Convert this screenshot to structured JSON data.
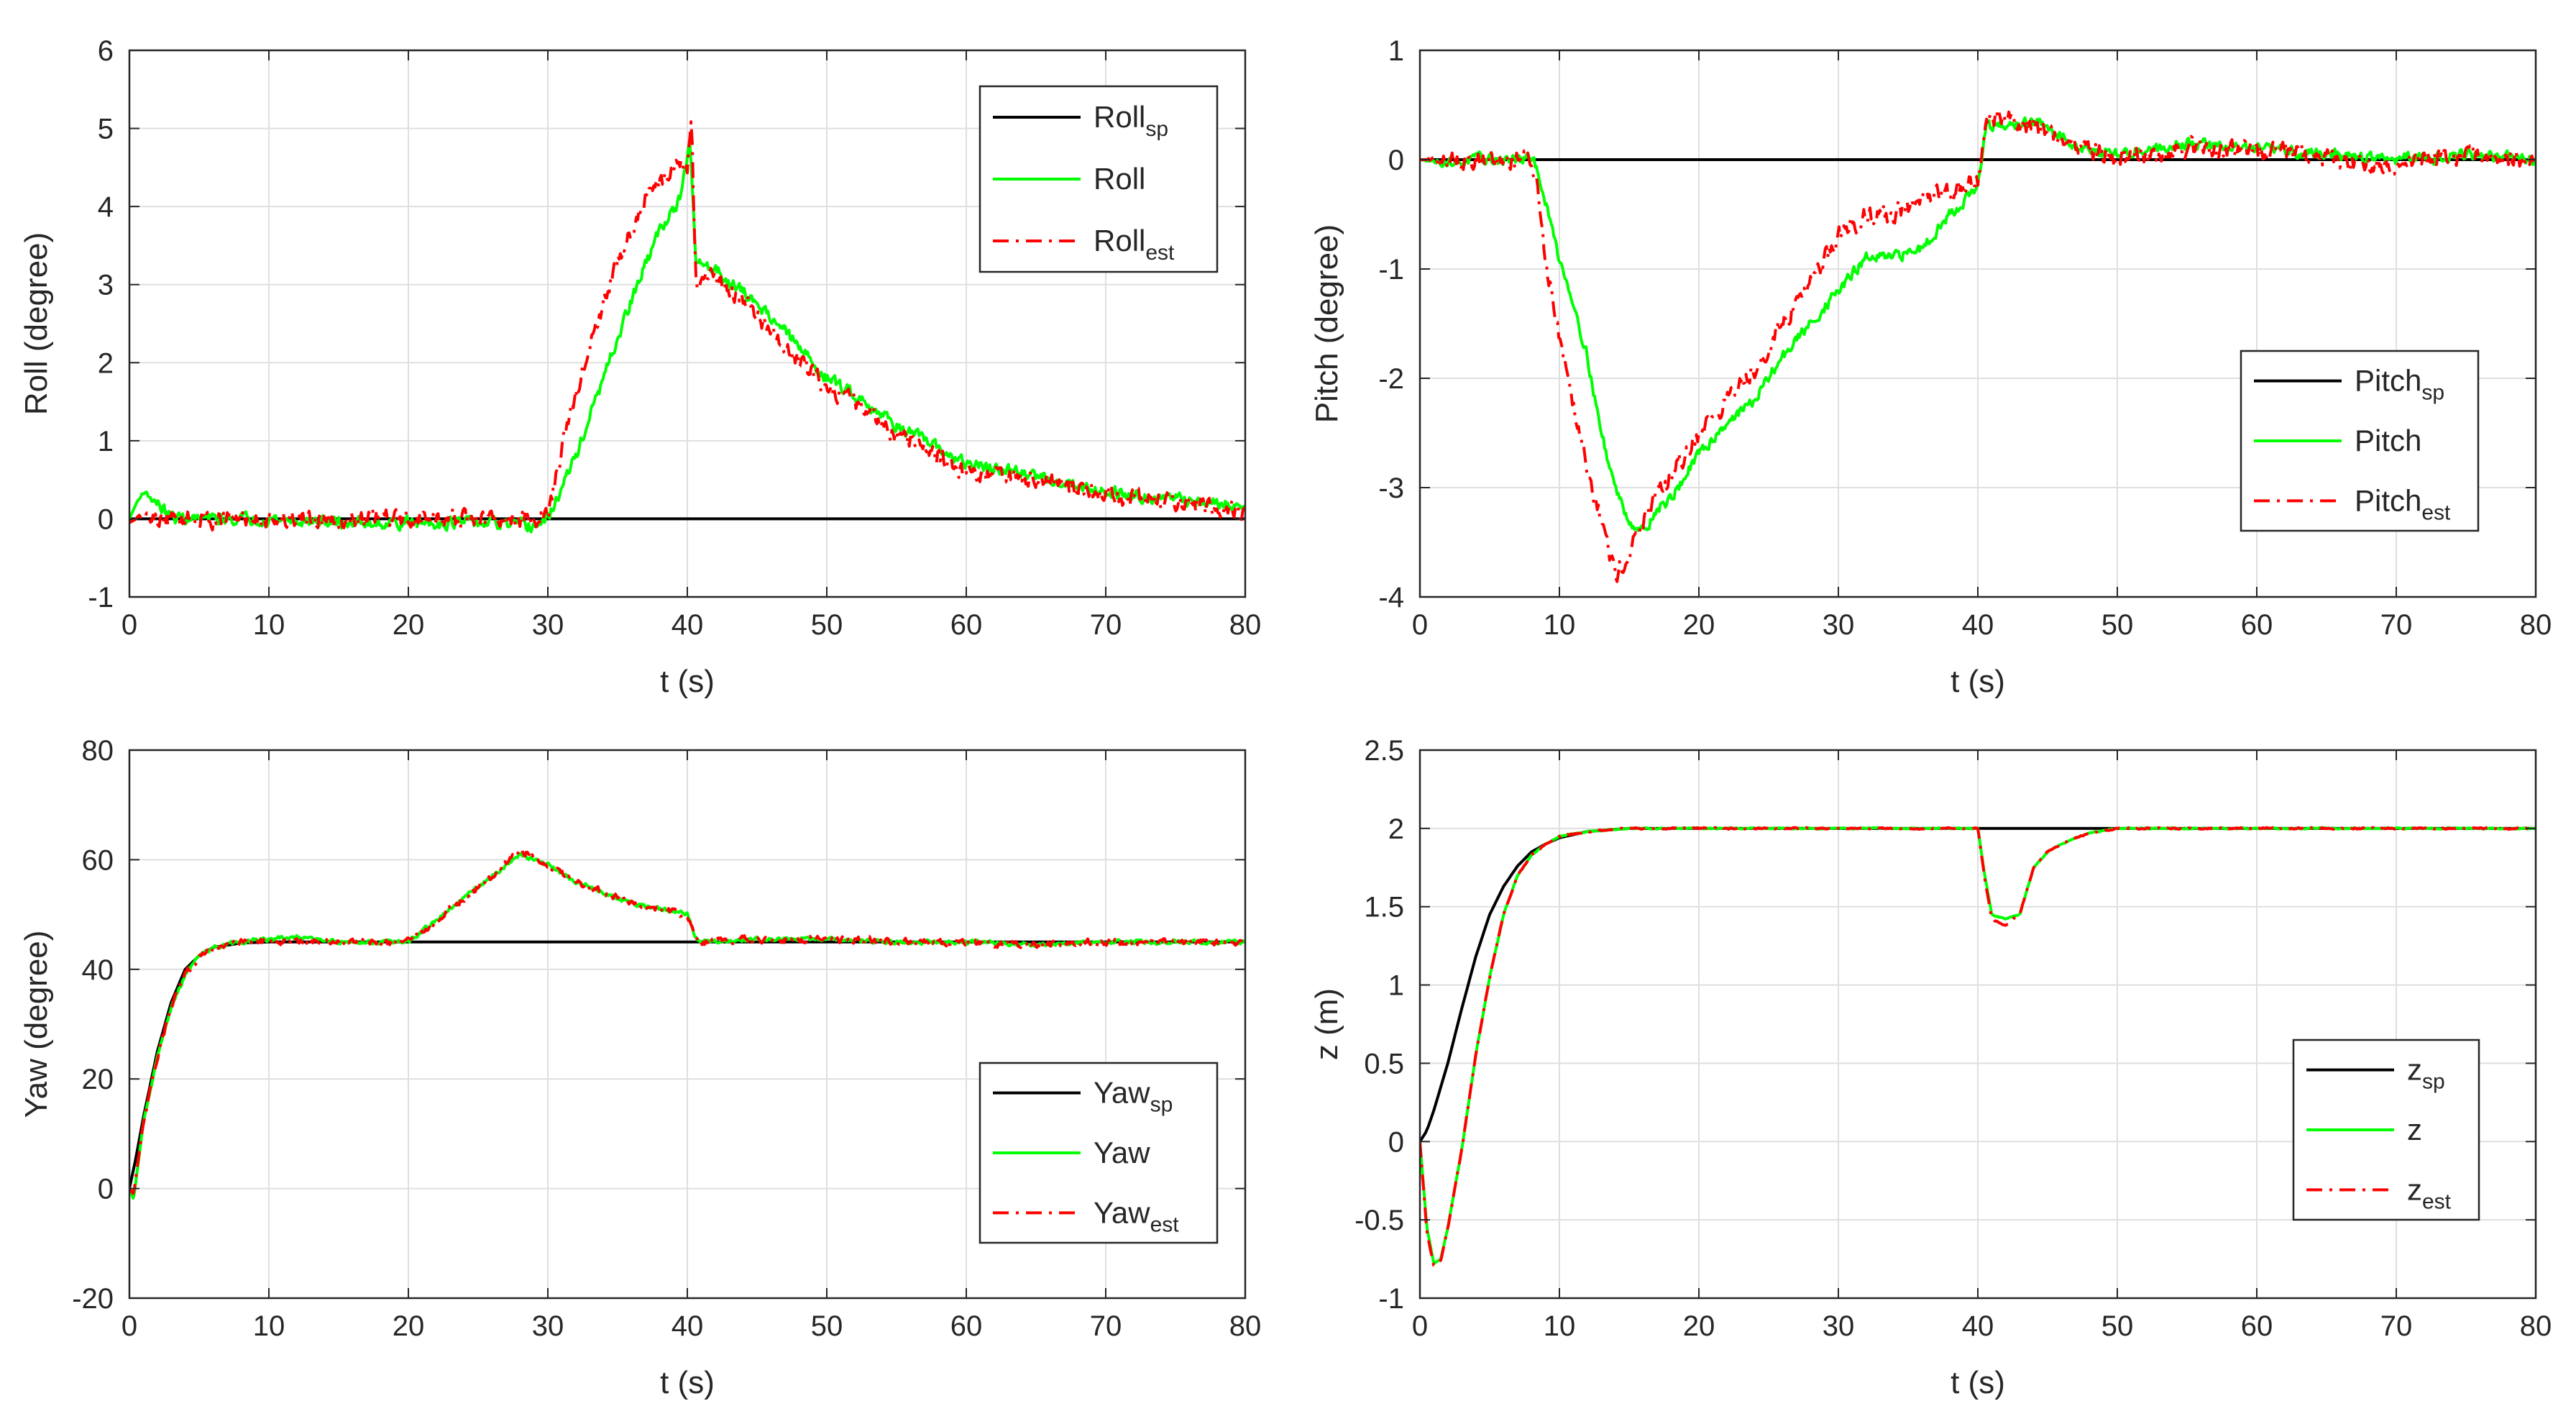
{
  "colors": {
    "setpoint": "#000000",
    "measured": "#00ff00",
    "estimated": "#ff0000",
    "grid": "#dfdfdf",
    "axis": "#262626"
  },
  "chart_data": [
    {
      "type": "line",
      "id": "roll",
      "xlabel": "t (s)",
      "ylabel": "Roll (degree)",
      "xlim": [
        0,
        80
      ],
      "ylim": [
        -1,
        6
      ],
      "xticks": [
        0,
        10,
        20,
        30,
        40,
        50,
        60,
        70,
        80
      ],
      "yticks": [
        -1,
        0,
        1,
        2,
        3,
        4,
        5,
        6
      ],
      "legend_position": "top-right",
      "series": [
        {
          "name": "Roll",
          "sub": "sp",
          "style": "solid",
          "color": "#000000",
          "noise": 0,
          "x": [
            0,
            80
          ],
          "y": [
            0,
            0
          ]
        },
        {
          "name": "Roll",
          "sub": "",
          "style": "solid",
          "color": "#00ff00",
          "noise": 0.12,
          "x": [
            0,
            0.5,
            1,
            2,
            3,
            5,
            10,
            15,
            20,
            25,
            29,
            30,
            32,
            34,
            36,
            38,
            39.5,
            40.2,
            40.6,
            42,
            44,
            46,
            48,
            50,
            52,
            55,
            58,
            60,
            65,
            70,
            75,
            80
          ],
          "y": [
            0,
            0.2,
            0.35,
            0.2,
            0.02,
            0,
            0,
            -0.05,
            -0.05,
            -0.05,
            -0.1,
            0,
            0.8,
            1.8,
            2.8,
            3.7,
            4.1,
            4.8,
            3.3,
            3.2,
            2.9,
            2.6,
            2.2,
            1.8,
            1.6,
            1.2,
            0.9,
            0.7,
            0.55,
            0.35,
            0.25,
            0.15
          ]
        },
        {
          "name": "Roll",
          "sub": "est",
          "style": "dashdot",
          "color": "#ff0000",
          "noise": 0.18,
          "x": [
            0,
            1,
            2,
            5,
            10,
            15,
            20,
            25,
            29,
            30,
            31,
            33,
            35,
            37,
            39,
            40,
            40.3,
            40.6,
            42,
            44,
            46,
            48,
            50,
            52,
            55,
            58,
            60,
            65,
            70,
            75,
            80
          ],
          "y": [
            -0.05,
            0.05,
            0,
            0,
            0,
            0,
            0,
            0,
            0,
            0.05,
            0.9,
            2.2,
            3.3,
            4.1,
            4.5,
            4.5,
            5.1,
            3.0,
            3.1,
            2.8,
            2.4,
            2.0,
            1.7,
            1.5,
            1.1,
            0.8,
            0.6,
            0.5,
            0.3,
            0.2,
            0.1
          ]
        }
      ]
    },
    {
      "type": "line",
      "id": "pitch",
      "xlabel": "t (s)",
      "ylabel": "Pitch (degree)",
      "xlim": [
        0,
        80
      ],
      "ylim": [
        -4,
        1
      ],
      "xticks": [
        0,
        10,
        20,
        30,
        40,
        50,
        60,
        70,
        80
      ],
      "yticks": [
        -4,
        -3,
        -2,
        -1,
        0,
        1
      ],
      "legend_position": "middle-right",
      "series": [
        {
          "name": "Pitch",
          "sub": "sp",
          "style": "solid",
          "color": "#000000",
          "noise": 0,
          "x": [
            0,
            80
          ],
          "y": [
            0,
            0
          ]
        },
        {
          "name": "Pitch",
          "sub": "",
          "style": "solid",
          "color": "#00ff00",
          "noise": 0.08,
          "x": [
            0,
            2,
            4,
            6,
            8,
            8.5,
            9,
            10,
            11,
            12,
            13,
            14,
            15,
            16,
            17,
            18,
            20,
            22,
            24,
            26,
            28,
            30,
            32,
            34,
            36,
            38,
            40,
            40.6,
            42,
            44,
            46,
            48,
            50,
            55,
            60,
            65,
            70,
            75,
            80
          ],
          "y": [
            0,
            -0.03,
            0,
            0,
            0,
            -0.1,
            -0.4,
            -0.9,
            -1.3,
            -1.8,
            -2.5,
            -3.0,
            -3.3,
            -3.4,
            -3.2,
            -3.1,
            -2.7,
            -2.4,
            -2.2,
            -1.8,
            -1.5,
            -1.2,
            -0.9,
            -0.9,
            -0.8,
            -0.5,
            -0.25,
            0.3,
            0.3,
            0.35,
            0.2,
            0.1,
            0.05,
            0.15,
            0.1,
            0.05,
            0.0,
            0.05,
            0.0
          ]
        },
        {
          "name": "Pitch",
          "sub": "est",
          "style": "dashdot",
          "color": "#ff0000",
          "noise": 0.14,
          "x": [
            0,
            2,
            4,
            6,
            8,
            8.5,
            9,
            10,
            11,
            12,
            13,
            14,
            15,
            16,
            17,
            18,
            20,
            22,
            24,
            26,
            28,
            30,
            32,
            34,
            36,
            38,
            40,
            40.6,
            42,
            44,
            46,
            48,
            50,
            55,
            60,
            65,
            70,
            75,
            80
          ],
          "y": [
            0,
            0,
            0,
            0,
            0,
            -0.3,
            -0.9,
            -1.6,
            -2.2,
            -2.8,
            -3.3,
            -3.8,
            -3.6,
            -3.3,
            -3.1,
            -2.9,
            -2.5,
            -2.2,
            -1.9,
            -1.5,
            -1.1,
            -0.7,
            -0.5,
            -0.5,
            -0.4,
            -0.3,
            -0.2,
            0.35,
            0.4,
            0.3,
            0.2,
            0.1,
            0.0,
            0.1,
            0.1,
            0.0,
            -0.05,
            0.05,
            -0.05
          ]
        }
      ]
    },
    {
      "type": "line",
      "id": "yaw",
      "xlabel": "t (s)",
      "ylabel": "Yaw (degree)",
      "xlim": [
        0,
        80
      ],
      "ylim": [
        -20,
        80
      ],
      "xticks": [
        0,
        10,
        20,
        30,
        40,
        50,
        60,
        70,
        80
      ],
      "yticks": [
        -20,
        0,
        20,
        40,
        60,
        80
      ],
      "legend_position": "bottom-right",
      "series": [
        {
          "name": "Yaw",
          "sub": "sp",
          "style": "solid",
          "color": "#000000",
          "noise": 0,
          "x": [
            0,
            0.5,
            1,
            2,
            3,
            4,
            5,
            6,
            8,
            10,
            20,
            80
          ],
          "y": [
            0,
            6,
            13,
            25,
            34,
            40,
            42.5,
            44,
            44.8,
            45,
            45,
            45
          ]
        },
        {
          "name": "Yaw",
          "sub": "",
          "style": "solid",
          "color": "#00ff00",
          "noise": 0.6,
          "x": [
            0,
            0.3,
            1,
            2,
            3,
            4,
            5,
            6,
            8,
            10,
            12,
            15,
            18,
            20,
            22,
            24,
            26,
            28,
            30,
            32,
            34,
            36,
            38,
            40,
            40.6,
            41,
            45,
            50,
            55,
            60,
            65,
            70,
            75,
            80
          ],
          "y": [
            0,
            -2,
            12,
            24,
            33,
            39,
            42.5,
            44,
            45,
            45.5,
            45.8,
            45,
            45,
            45,
            49,
            53,
            57,
            61,
            59,
            56,
            54,
            52,
            51,
            50,
            46,
            45,
            45.5,
            45.5,
            45,
            45,
            44.5,
            45,
            45,
            45
          ]
        },
        {
          "name": "Yaw",
          "sub": "est",
          "style": "dashdot",
          "color": "#ff0000",
          "noise": 1.0,
          "x": [
            0,
            0.3,
            1,
            2,
            3,
            4,
            5,
            6,
            8,
            10,
            12,
            15,
            18,
            20,
            22,
            24,
            26,
            28,
            30,
            32,
            34,
            36,
            38,
            40,
            40.6,
            41,
            45,
            50,
            55,
            60,
            65,
            70,
            75,
            80
          ],
          "y": [
            0,
            -1,
            12,
            24,
            33,
            39,
            42.5,
            44,
            45,
            45,
            45,
            45,
            45,
            45,
            49,
            53,
            57,
            62,
            59,
            56,
            54,
            52,
            51,
            50,
            46,
            45,
            45.5,
            45.5,
            45,
            45,
            44.5,
            45,
            45,
            45
          ]
        }
      ]
    },
    {
      "type": "line",
      "id": "z",
      "xlabel": "t (s)",
      "ylabel": "z (m)",
      "xlim": [
        0,
        80
      ],
      "ylim": [
        -1,
        2.5
      ],
      "xticks": [
        0,
        10,
        20,
        30,
        40,
        50,
        60,
        70,
        80
      ],
      "yticks": [
        -1,
        -0.5,
        0,
        0.5,
        1,
        1.5,
        2,
        2.5
      ],
      "legend_position": "bottom-right",
      "series": [
        {
          "name": "z",
          "sub": "sp",
          "style": "solid",
          "color": "#000000",
          "noise": 0,
          "x": [
            0,
            0.5,
            1,
            2,
            3,
            4,
            5,
            6,
            7,
            8,
            9,
            10,
            12,
            15,
            20,
            40,
            80
          ],
          "y": [
            0,
            0.07,
            0.2,
            0.5,
            0.85,
            1.18,
            1.45,
            1.63,
            1.76,
            1.85,
            1.9,
            1.94,
            1.98,
            2.0,
            2.0,
            2.0,
            2.0
          ]
        },
        {
          "name": "z",
          "sub": "",
          "style": "solid",
          "color": "#00ff00",
          "noise": 0.006,
          "x": [
            0,
            0.5,
            1,
            1.5,
            2,
            3,
            4,
            5,
            6,
            7,
            8,
            9,
            10,
            12,
            15,
            20,
            30,
            40,
            40.5,
            41,
            42,
            43,
            44,
            45,
            46,
            47,
            48,
            50,
            55,
            60,
            65,
            70,
            75,
            80
          ],
          "y": [
            0,
            -0.55,
            -0.78,
            -0.75,
            -0.55,
            -0.05,
            0.55,
            1.05,
            1.45,
            1.7,
            1.83,
            1.9,
            1.95,
            1.98,
            2.0,
            2.0,
            2.0,
            2.0,
            1.7,
            1.45,
            1.42,
            1.45,
            1.75,
            1.85,
            1.9,
            1.94,
            1.97,
            2.0,
            2.0,
            2.0,
            2.0,
            2.0,
            2.0,
            2.0
          ]
        },
        {
          "name": "z",
          "sub": "est",
          "style": "dashdot",
          "color": "#ff0000",
          "noise": 0.008,
          "x": [
            0,
            0.5,
            1,
            1.5,
            2,
            3,
            4,
            5,
            6,
            7,
            8,
            9,
            10,
            12,
            15,
            20,
            30,
            40,
            40.5,
            41,
            42,
            43,
            44,
            45,
            46,
            47,
            48,
            50,
            55,
            60,
            65,
            70,
            75,
            80
          ],
          "y": [
            0,
            -0.58,
            -0.8,
            -0.76,
            -0.55,
            -0.05,
            0.55,
            1.05,
            1.45,
            1.7,
            1.83,
            1.9,
            1.95,
            1.98,
            2.0,
            2.0,
            2.0,
            2.0,
            1.68,
            1.42,
            1.38,
            1.45,
            1.75,
            1.85,
            1.9,
            1.94,
            1.97,
            2.0,
            2.0,
            2.0,
            2.0,
            2.0,
            2.0,
            2.0
          ]
        }
      ]
    }
  ]
}
